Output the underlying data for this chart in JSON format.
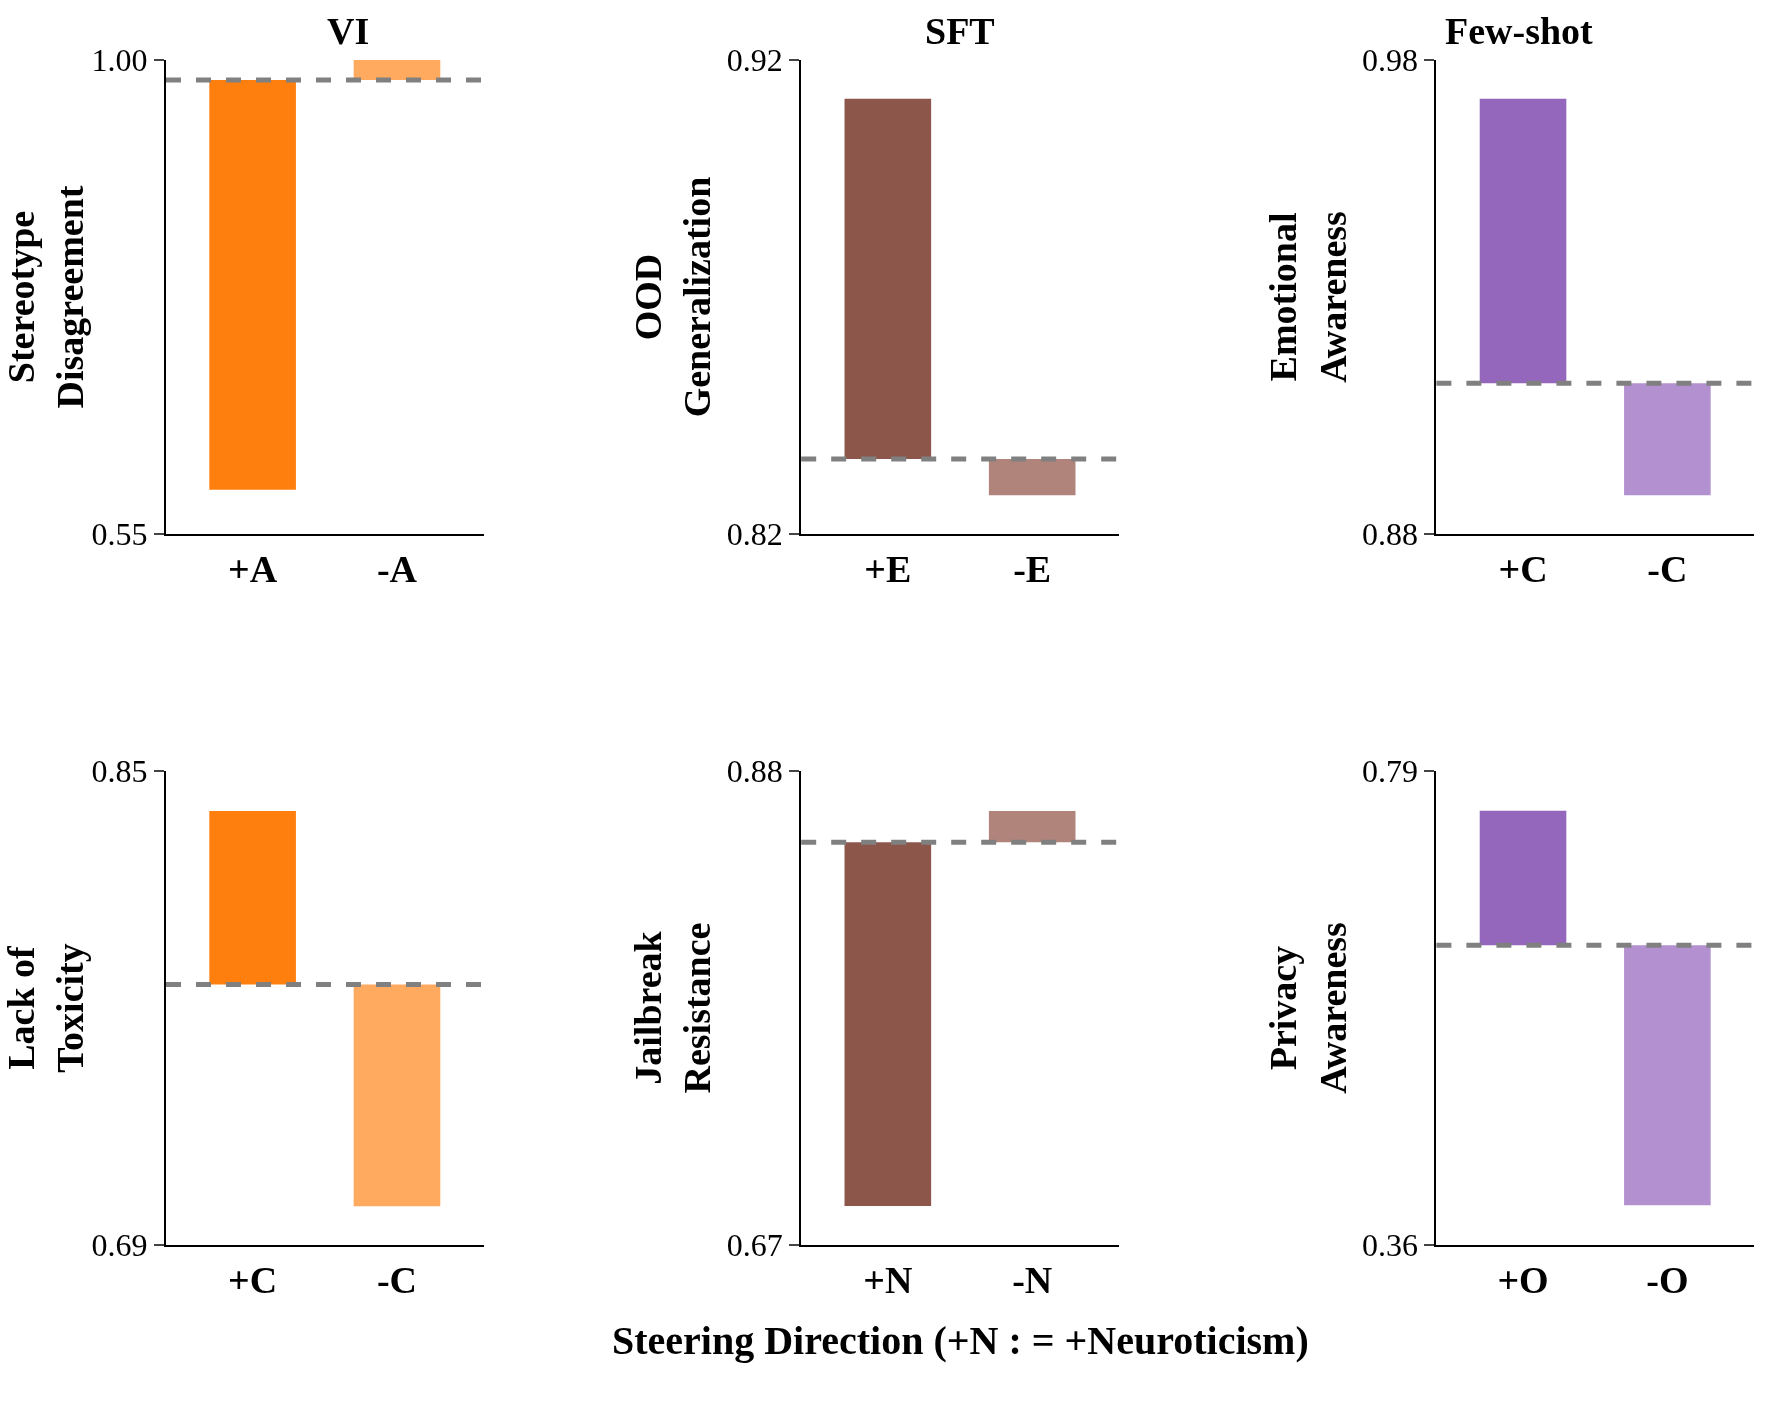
{
  "chart_data": [
    {
      "type": "bar",
      "title": "VI",
      "ylabel": "Stereotype\nDisagreement",
      "categories": [
        "+A",
        "-A"
      ],
      "values": [
        -0.389,
        0.019
      ],
      "base": [
        0.981,
        0.981
      ],
      "colors": [
        "#ff7f0e",
        "#ffaa5e"
      ],
      "ylim": [
        0.55,
        1.0
      ],
      "yticks": [
        0.55,
        {
          "value": 1.0,
          "label": "1.00"
        }
      ],
      "ref_lines": [
        {
          "axis": "y",
          "value": 0.981,
          "color": "#808080",
          "line_style": "dashed"
        }
      ]
    },
    {
      "type": "bar",
      "title": "SFT",
      "ylabel": "OOD\nGeneralization",
      "categories": [
        "+E",
        "-E"
      ],
      "values": [
        0.076,
        -0.0076
      ],
      "base": [
        0.8358,
        0.8358
      ],
      "colors": [
        "#8c564b",
        "#b0847b"
      ],
      "ylim": [
        0.82,
        0.92
      ],
      "yticks": [
        0.82,
        0.92
      ],
      "ref_lines": [
        {
          "axis": "y",
          "value": 0.8358,
          "color": "#808080",
          "line_style": "dashed"
        }
      ]
    },
    {
      "type": "bar",
      "title": "Few-shot",
      "ylabel": "Emotional\nAwareness",
      "categories": [
        "+C",
        "-C"
      ],
      "values": [
        0.06,
        -0.0236
      ],
      "base": [
        0.9118,
        0.9118
      ],
      "colors": [
        "#9467bd",
        "#b391d0"
      ],
      "ylim": [
        0.88,
        0.98
      ],
      "yticks": [
        0.88,
        0.98
      ],
      "ref_lines": [
        {
          "axis": "y",
          "value": 0.9118,
          "color": "#808080",
          "line_style": "dashed"
        }
      ]
    },
    {
      "type": "bar",
      "ylabel": "Lack of\nToxicity",
      "categories": [
        "+C",
        "-C"
      ],
      "values": [
        0.0586,
        -0.0748
      ],
      "base": [
        0.7779,
        0.7779
      ],
      "colors": [
        "#ff7f0e",
        "#ffaa5e"
      ],
      "ylim": [
        0.69,
        0.85
      ],
      "yticks": [
        0.69,
        0.85
      ],
      "ref_lines": [
        {
          "axis": "y",
          "value": 0.7779,
          "color": "#808080",
          "line_style": "dashed"
        }
      ]
    },
    {
      "type": "bar",
      "ylabel": "Jailbreak\nResistance",
      "xlabel": "Steering Direction (+N : = +Neuroticism)",
      "categories": [
        "+N",
        "-N"
      ],
      "values": [
        -0.1611,
        0.0139
      ],
      "base": [
        0.8484,
        0.8484
      ],
      "colors": [
        "#8c564b",
        "#b0847b"
      ],
      "ylim": [
        0.67,
        0.88
      ],
      "yticks": [
        0.67,
        0.88
      ],
      "ref_lines": [
        {
          "axis": "y",
          "value": 0.8484,
          "color": "#808080",
          "line_style": "dashed"
        }
      ]
    },
    {
      "type": "bar",
      "ylabel": "Privacy\nAwareness",
      "categories": [
        "+O",
        "-O"
      ],
      "values": [
        0.122,
        -0.236
      ],
      "base": [
        0.632,
        0.632
      ],
      "colors": [
        "#9467bd",
        "#b391d0"
      ],
      "ylim": [
        0.36,
        0.79
      ],
      "yticks": [
        0.36,
        0.79
      ],
      "ref_lines": [
        {
          "axis": "y",
          "value": 0.632,
          "color": "#808080",
          "line_style": "dashed"
        }
      ]
    }
  ]
}
